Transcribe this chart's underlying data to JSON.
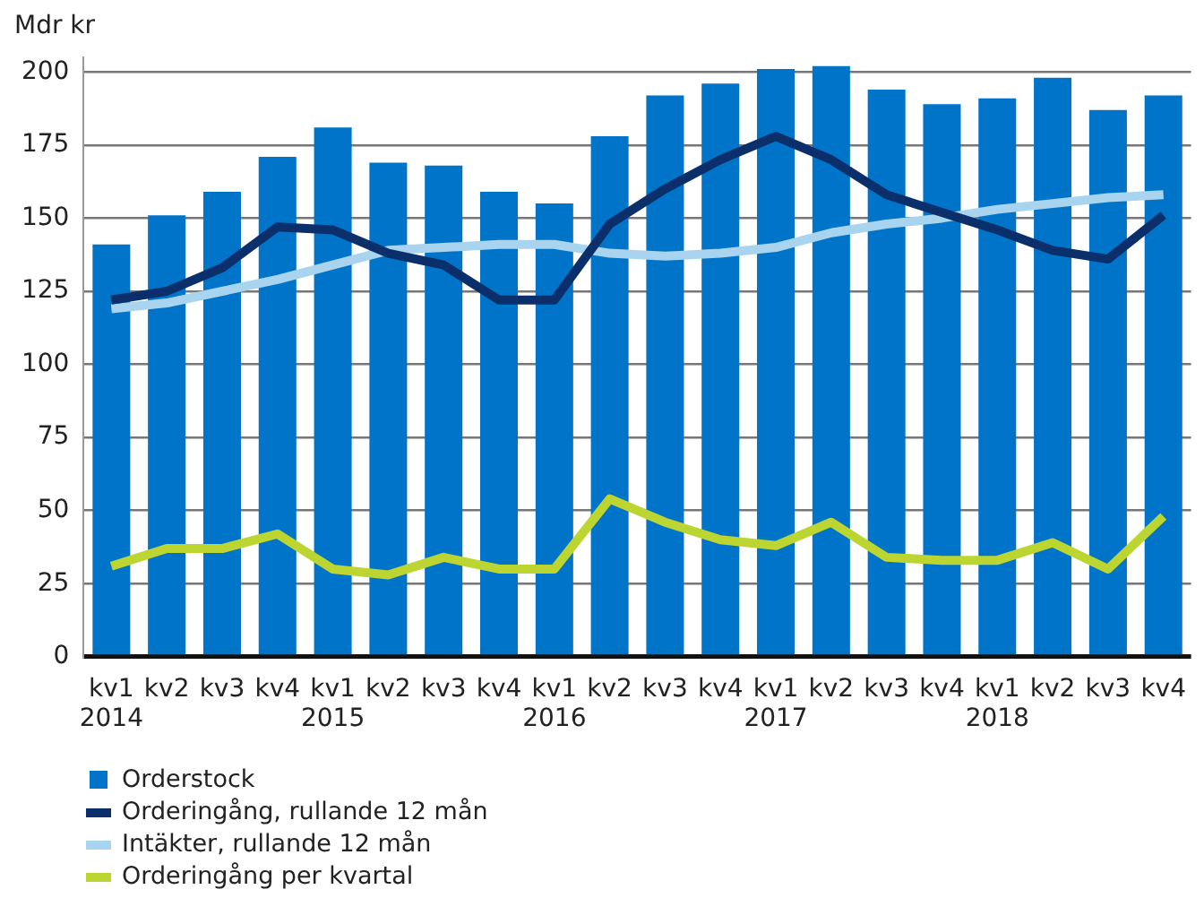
{
  "chart_data": {
    "type": "bar",
    "ylabel": "Mdr kr",
    "categories": [
      "kv1\n2014",
      "kv2",
      "kv3",
      "kv4",
      "kv1\n2015",
      "kv2",
      "kv3",
      "kv4",
      "kv1\n2016",
      "kv2",
      "kv3",
      "kv4",
      "kv1\n2017",
      "kv2",
      "kv3",
      "kv4",
      "kv1\n2018",
      "kv2",
      "kv3",
      "kv4"
    ],
    "series": [
      {
        "name": "Orderstock",
        "color": "#0074c8",
        "values": [
          141,
          151,
          159,
          171,
          181,
          169,
          168,
          159,
          155,
          178,
          192,
          196,
          201,
          202,
          194,
          189,
          191,
          198,
          187,
          192
        ]
      },
      {
        "name": "Orderingång, rullande 12 mån",
        "type": "line",
        "color": "#0a2f6b",
        "values": [
          122,
          125,
          133,
          147,
          146,
          138,
          134,
          122,
          122,
          148,
          160,
          170,
          178,
          170,
          158,
          152,
          146,
          139,
          136,
          151
        ]
      },
      {
        "name": "Intäkter, rullande 12 mån",
        "type": "line",
        "color": "#a8d4ef",
        "values": [
          119,
          121,
          125,
          129,
          134,
          139,
          140,
          141,
          141,
          138,
          137,
          138,
          140,
          145,
          148,
          150,
          153,
          155,
          157,
          158
        ]
      },
      {
        "name": "Orderingång per kvartal",
        "type": "line",
        "color": "#bcd530",
        "values": [
          31,
          37,
          37,
          42,
          30,
          28,
          34,
          30,
          30,
          54,
          46,
          40,
          38,
          46,
          34,
          33,
          33,
          39,
          30,
          48
        ]
      }
    ],
    "ylim": [
      0,
      205
    ],
    "yticks": [
      0,
      25,
      50,
      75,
      100,
      125,
      150,
      175,
      200
    ],
    "grid": "y",
    "legend": "bottom",
    "marker": "none"
  }
}
